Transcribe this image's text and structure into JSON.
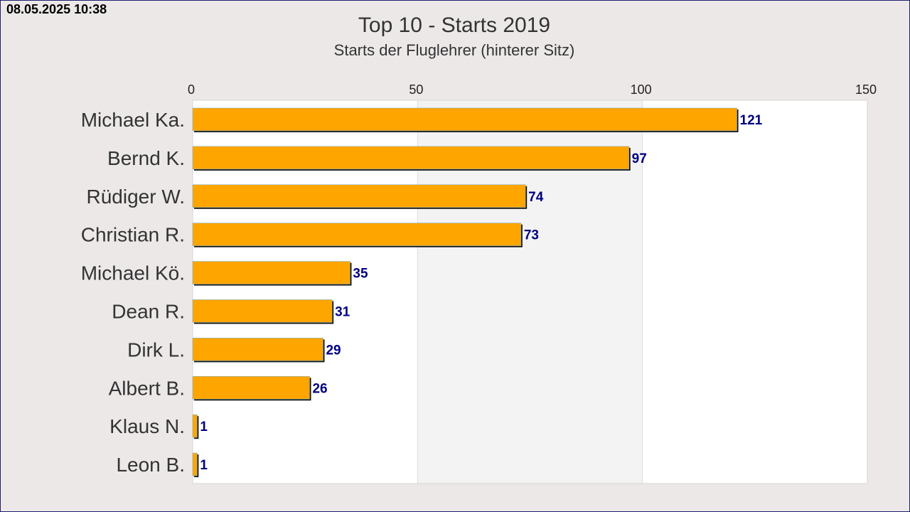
{
  "header": {
    "timestamp": "08.05.2025 10:38"
  },
  "colors": {
    "bar": "#ffa500",
    "bar_shadow": "#111111",
    "value_label": "#000080",
    "band_light": "#ffffff",
    "band_dark": "#f4f3f3",
    "background": "#ece8e8"
  },
  "chart_data": {
    "type": "bar",
    "orientation": "horizontal",
    "title": "Top 10 - Starts 2019",
    "subtitle": "Starts der Fluglehrer (hinterer Sitz)",
    "xlabel": "",
    "ylabel": "",
    "xlim": [
      0,
      150
    ],
    "ticks": [
      0,
      50,
      100,
      150
    ],
    "tick_labels": [
      "0",
      "50",
      "100",
      "150"
    ],
    "axis_position": "top",
    "grid": true,
    "categories": [
      "Michael Ka.",
      "Bernd K.",
      "Rüdiger W.",
      "Christian R.",
      "Michael Kö.",
      "Dean R.",
      "Dirk L.",
      "Albert B.",
      "Klaus N.",
      "Leon B."
    ],
    "values": [
      121,
      97,
      74,
      73,
      35,
      31,
      29,
      26,
      1,
      1
    ],
    "value_labels": [
      "121",
      "97",
      "74",
      "73",
      "35",
      "31",
      "29",
      "26",
      "1",
      "1"
    ]
  }
}
